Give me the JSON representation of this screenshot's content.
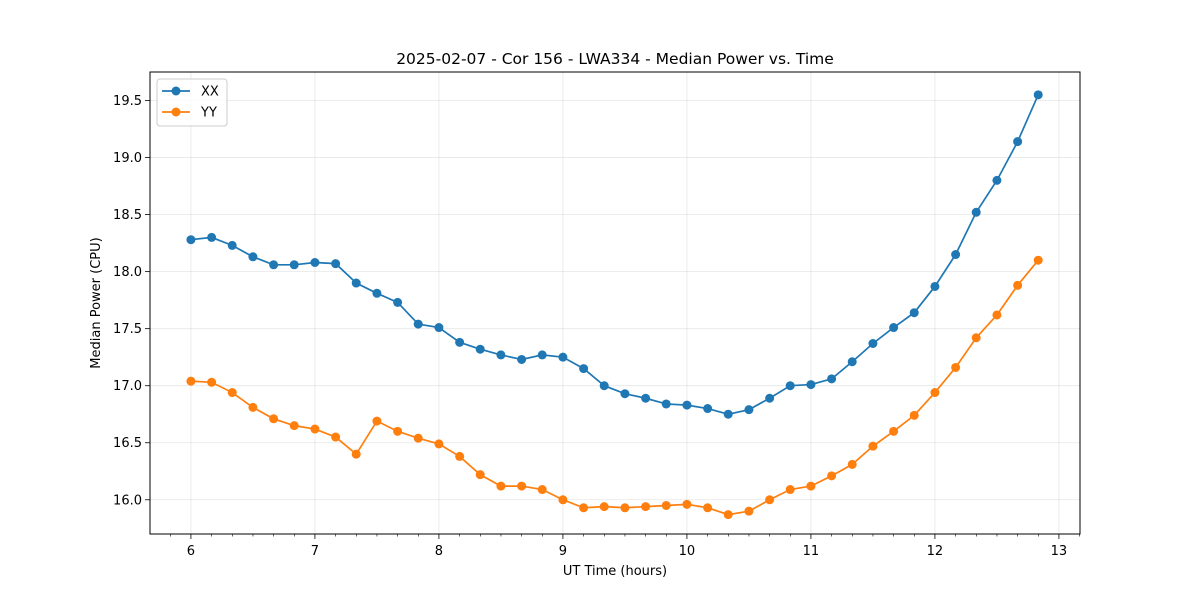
{
  "chart_data": {
    "type": "line",
    "title": "2025-02-07 - Cor 156 - LWA334 - Median Power vs. Time",
    "xlabel": "UT Time (hours)",
    "ylabel": "Median Power (CPU)",
    "xlim": [
      5.67,
      13.17
    ],
    "ylim": [
      15.7,
      19.75
    ],
    "xticks": [
      6,
      7,
      8,
      9,
      10,
      11,
      12,
      13
    ],
    "xtick_labels": [
      "6",
      "7",
      "8",
      "9",
      "10",
      "11",
      "12",
      "13"
    ],
    "yticks": [
      16.0,
      16.5,
      17.0,
      17.5,
      18.0,
      18.5,
      19.0,
      19.5
    ],
    "ytick_labels": [
      "16.0",
      "16.5",
      "17.0",
      "17.5",
      "18.0",
      "18.5",
      "19.0",
      "19.5"
    ],
    "grid": true,
    "legend_position": "top-left",
    "x": [
      6.0,
      6.167,
      6.333,
      6.5,
      6.667,
      6.833,
      7.0,
      7.167,
      7.333,
      7.5,
      7.667,
      7.833,
      8.0,
      8.167,
      8.333,
      8.5,
      8.667,
      8.833,
      9.0,
      9.167,
      9.333,
      9.5,
      9.667,
      9.833,
      10.0,
      10.167,
      10.333,
      10.5,
      10.667,
      10.833,
      11.0,
      11.167,
      11.333,
      11.5,
      11.667,
      11.833,
      12.0,
      12.167,
      12.333,
      12.5,
      12.667,
      12.833
    ],
    "series": [
      {
        "name": "XX",
        "color": "#1f77b4",
        "values": [
          18.28,
          18.3,
          18.23,
          18.13,
          18.06,
          18.06,
          18.08,
          18.07,
          17.9,
          17.81,
          17.73,
          17.54,
          17.51,
          17.38,
          17.32,
          17.27,
          17.23,
          17.27,
          17.25,
          17.15,
          17.0,
          16.93,
          16.89,
          16.84,
          16.83,
          16.8,
          16.75,
          16.79,
          16.89,
          17.0,
          17.01,
          17.06,
          17.21,
          17.37,
          17.51,
          17.64,
          17.87,
          18.15,
          18.52,
          18.8,
          19.14,
          19.55
        ]
      },
      {
        "name": "YY",
        "color": "#ff7f0e",
        "values": [
          17.04,
          17.03,
          16.94,
          16.81,
          16.71,
          16.65,
          16.62,
          16.55,
          16.4,
          16.69,
          16.6,
          16.54,
          16.49,
          16.38,
          16.22,
          16.12,
          16.12,
          16.09,
          16.0,
          15.93,
          15.94,
          15.93,
          15.94,
          15.95,
          15.96,
          15.93,
          15.87,
          15.9,
          16.0,
          16.09,
          16.12,
          16.21,
          16.31,
          16.47,
          16.6,
          16.74,
          16.94,
          17.16,
          17.42,
          17.62,
          17.88,
          18.1
        ]
      }
    ]
  }
}
